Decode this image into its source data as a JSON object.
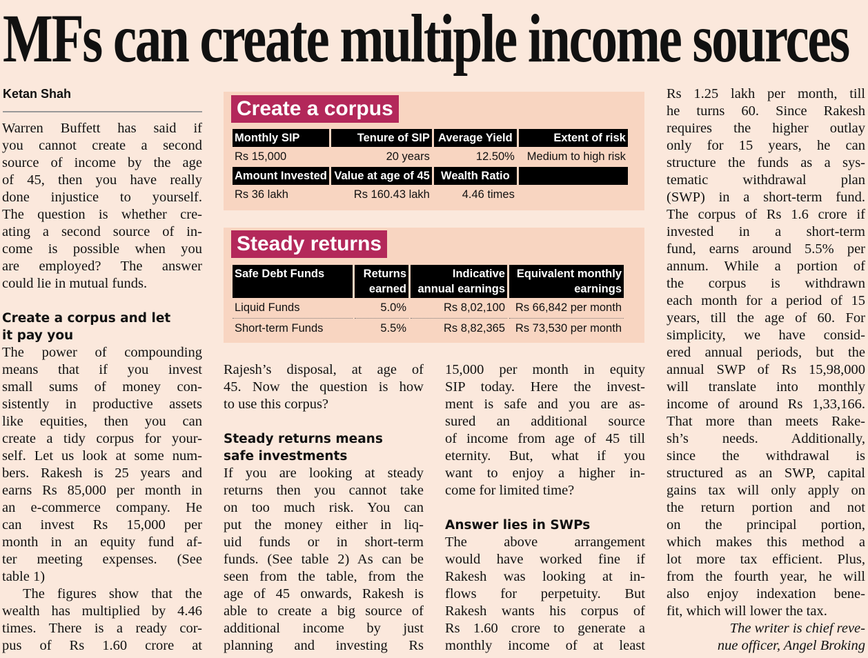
{
  "headline": "MFs can create multiple income sources",
  "byline": "Ketan Shah",
  "table1": {
    "title": "Create a corpus",
    "rows": [
      {
        "type": "header",
        "cells": [
          "Monthly SIP",
          "Tenure of SIP",
          "Average Yield",
          "Extent of risk"
        ]
      },
      {
        "type": "data",
        "cells": [
          "Rs 15,000",
          "20 years",
          "12.50%",
          "Medium to high risk"
        ]
      },
      {
        "type": "header",
        "cells": [
          "Amount Invested",
          "Value at age of 45",
          "Wealth Ratio",
          ""
        ]
      },
      {
        "type": "data",
        "cells": [
          "Rs 36 lakh",
          "Rs 160.43 lakh",
          "4.46 times",
          ""
        ]
      }
    ]
  },
  "table2": {
    "title": "Steady returns",
    "headers": [
      [
        "Safe Debt Funds",
        ""
      ],
      [
        "Returns",
        "earned"
      ],
      [
        "Indicative",
        "annual earnings"
      ],
      [
        "Equivalent monthly",
        "earnings"
      ]
    ],
    "rows": [
      [
        "Liquid Funds",
        "5.0%",
        "Rs 8,02,100",
        "Rs 66,842 per month"
      ],
      [
        "Short-term Funds",
        "5.5%",
        "Rs 8,82,365",
        "Rs 73,530 per month"
      ]
    ]
  },
  "columns": [
    [
      {
        "type": "p",
        "lines": [
          "Warren Buffett has said if",
          "you cannot create a second",
          "source of income by the age",
          "of 45, then you have really",
          "done injustice to yourself.",
          "The question is whether cre-",
          "ating a second source of in-",
          "come is possible when you",
          "are employed? The answer",
          "could lie in mutual funds."
        ]
      },
      {
        "type": "gap"
      },
      {
        "type": "h",
        "lines": [
          "Create a corpus and let",
          "it pay you"
        ]
      },
      {
        "type": "p",
        "lines": [
          "The power of compounding",
          "means that if you invest",
          "small sums of money con-",
          "sistently in productive assets",
          "like equities, then you can",
          "create a tidy corpus for your-",
          "self. Let us look at some num-",
          "bers. Rakesh is 25 years and",
          "earns Rs 85,000 per month in",
          "an e-commerce company. He",
          "can invest Rs 15,000 per",
          "month in an equity fund af-",
          "ter meeting expenses. (See",
          "table 1)"
        ]
      },
      {
        "type": "p",
        "indent": true,
        "continues": true,
        "lines": [
          "The figures show that the",
          "wealth has multiplied by 4.46",
          "times. There is a ready cor-",
          "pus of Rs 1.60 crore at"
        ]
      }
    ],
    [
      {
        "type": "p",
        "lines": [
          "Rajesh’s disposal, at age of",
          "45. Now the question is how",
          "to use this corpus?"
        ]
      },
      {
        "type": "gap"
      },
      {
        "type": "h",
        "lines": [
          "Steady returns means",
          "safe investments"
        ]
      },
      {
        "type": "p",
        "continues": true,
        "lines": [
          "If you are looking at steady",
          "returns then you cannot take",
          "on too much risk. You can",
          "put the money either in liq-",
          "uid funds or in short-term",
          "funds. (See table 2) As can be",
          "seen from the table, from the",
          "age of 45 onwards, Rakesh is",
          "able to create a big source of",
          "additional income by just",
          "planning and investing Rs"
        ]
      }
    ],
    [
      {
        "type": "p",
        "lines": [
          "15,000 per month in equity",
          "SIP today. Here the invest-",
          "ment is safe and you are as-",
          "sured an additional source",
          "of income from age of 45 till",
          "eternity. But, what if you",
          "want to enjoy a higher in-",
          "come for limited time?"
        ]
      },
      {
        "type": "gap"
      },
      {
        "type": "h",
        "lines": [
          "Answer lies in SWPs"
        ]
      },
      {
        "type": "p",
        "continues": true,
        "lines": [
          "The above arrangement",
          "would have worked fine if",
          "Rakesh was looking at in-",
          "flows for perpetuity. But",
          "Rakesh wants his corpus of",
          "Rs 1.60 crore to generate a",
          "monthly income of at least"
        ]
      }
    ],
    [
      {
        "type": "p",
        "lines": [
          "Rs 1.25 lakh per month, till",
          "he turns 60. Since Rakesh",
          "requires the higher outlay",
          "only for 15 years, he can",
          "structure the funds as a sys-",
          "tematic withdrawal plan",
          "(SWP) in a short-term fund.",
          "The corpus of Rs 1.6 crore if",
          "invested in a short-term",
          "fund, earns around 5.5% per",
          "annum. While a portion of",
          "the corpus is withdrawn",
          "each month for a period of 15",
          "years, till the age of 60. For",
          "simplicity, we have consid-",
          "ered annual periods, but the",
          "annual SWP of Rs 15,98,000",
          "will translate into monthly",
          "income of around Rs 1,33,166.",
          "That more than meets Rake-",
          "sh’s needs. Additionally,",
          "since the withdrawal is",
          "structured as an SWP, capital",
          "gains tax will only apply on",
          "the return portion and not",
          "on the principal portion,",
          "which makes this method a",
          "lot more tax efficient. Plus,",
          "from the fourth year, he will",
          "also enjoy indexation bene-",
          "fit, which will lower the tax."
        ]
      },
      {
        "type": "sig",
        "lines": [
          "The writer is chief reve-",
          "nue officer, Angel Broking"
        ]
      }
    ]
  ],
  "colors": {
    "page": "#fbe8dc",
    "box": "#f8d5c1",
    "accent": "#b3285a"
  }
}
